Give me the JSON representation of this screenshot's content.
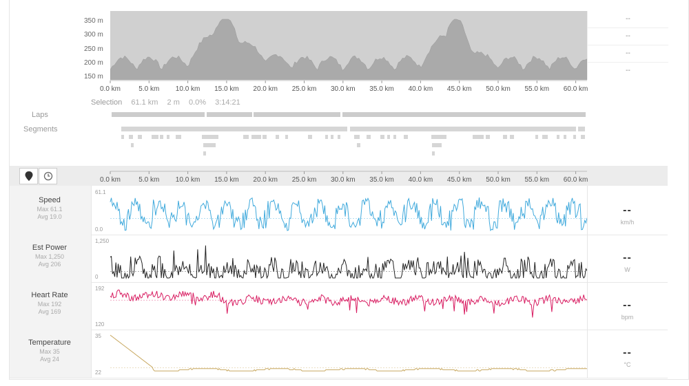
{
  "elevation": {
    "y_ticks": [
      "350 m",
      "300 m",
      "250 m",
      "200 m",
      "150 m"
    ],
    "side_values": [
      "--",
      "--",
      "--",
      "--"
    ]
  },
  "distance_ticks": [
    "0.0 km",
    "5.0 km",
    "10.0 km",
    "15.0 km",
    "20.0 km",
    "25.0 km",
    "30.0 km",
    "35.0 km",
    "40.0 km",
    "45.0 km",
    "50.0 km",
    "55.0 km",
    "60.0 km"
  ],
  "selection": {
    "label": "Selection",
    "distance": "61.1 km",
    "elevation": "2 m",
    "grade": "0.0%",
    "time": "3:14:21"
  },
  "laps_label": "Laps",
  "segments_label": "Segments",
  "controls": {
    "distance_icon": "map-pin-icon",
    "time_icon": "clock-icon"
  },
  "streams": [
    {
      "name": "Speed",
      "max": "Max 61.1",
      "avg": "Avg 19.0",
      "top": "61.1",
      "bottom": "0.0",
      "value": "--",
      "unit": "km/h",
      "color": "#3fa9dc"
    },
    {
      "name": "Est Power",
      "max": "Max 1,250",
      "avg": "Avg 206",
      "top": "1,250",
      "bottom": "0",
      "value": "--",
      "unit": "W",
      "color": "#222222"
    },
    {
      "name": "Heart Rate",
      "max": "Max 192",
      "avg": "Avg 169",
      "top": "192",
      "bottom": "120",
      "value": "--",
      "unit": "bpm",
      "color": "#d81b60"
    },
    {
      "name": "Temperature",
      "max": "Max 35",
      "avg": "Avg 24",
      "top": "35",
      "bottom": "22",
      "value": "--",
      "unit": "°C",
      "color": "#c8a860"
    }
  ]
}
